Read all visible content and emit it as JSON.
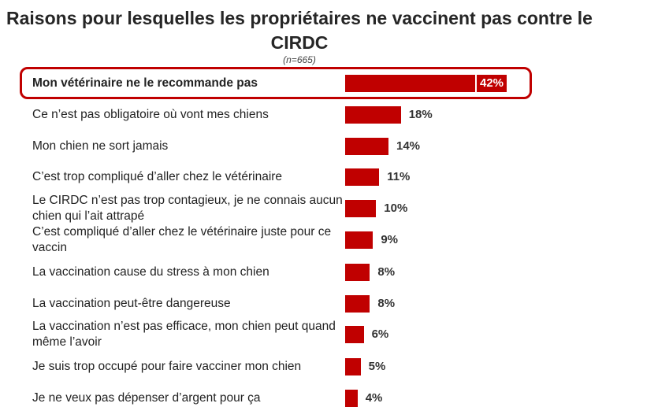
{
  "chart_data": {
    "type": "bar",
    "orientation": "horizontal",
    "title": "Raisons pour lesquelles les propriétaires ne vaccinent pas contre le CIRDC",
    "subtitle": "(n=665)",
    "categories": [
      "Mon vétérinaire ne le recommande pas",
      "Ce n’est pas obligatoire où vont mes chiens",
      "Mon chien ne sort jamais",
      "C’est trop compliqué d’aller chez le vétérinaire",
      "Le CIRDC n’est pas trop contagieux, je ne connais aucun chien qui l’ait attrapé",
      "C’est compliqué d’aller chez le vétérinaire juste pour ce vaccin",
      "La vaccination cause du stress à mon chien",
      "La vaccination peut-être dangereuse",
      "La vaccination n’est pas efficace, mon chien peut quand même l’avoir",
      "Je suis trop occupé pour faire vacciner mon chien",
      "Je ne veux pas dépenser d’argent pour ça"
    ],
    "values": [
      42,
      18,
      14,
      11,
      10,
      9,
      8,
      8,
      6,
      5,
      4
    ],
    "value_labels": [
      "42%",
      "18%",
      "14%",
      "11%",
      "10%",
      "9%",
      "8%",
      "8%",
      "6%",
      "5%",
      "4%"
    ],
    "unit": "%",
    "highlighted_index": 0,
    "bar_color": "#c00000",
    "highlight_color": "#c00000"
  }
}
